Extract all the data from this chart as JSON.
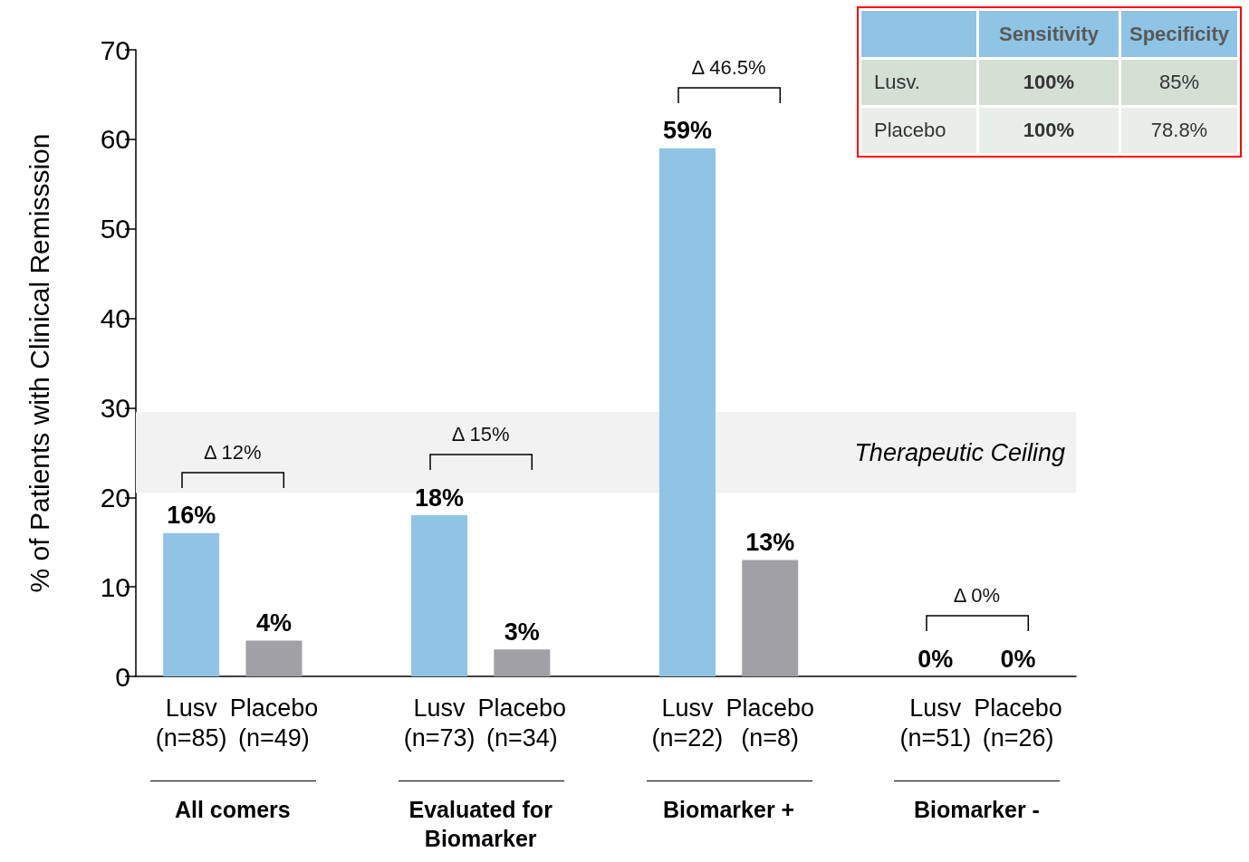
{
  "chart_data": [
    {
      "type": "bar",
      "ylabel": "% of Patients with Clinical Remisssion",
      "categories": [
        "Lusv\n(n=85)",
        "Placebo\n(n=49)",
        "Lusv\n(n=73)",
        "Placebo\n(n=34)",
        "Lusv\n(n=22)",
        "Placebo\n(n=8)",
        "Lusv\n(n=51)",
        "Placebo\n(n=26)"
      ],
      "values": [
        16,
        4,
        18,
        3,
        59,
        13,
        0,
        0
      ],
      "colors": [
        "#8fc4e4",
        "#a1a0a5",
        "#8fc4e4",
        "#a1a0a5",
        "#8fc4e4",
        "#a1a0a5",
        "#8fc4e4",
        "#a1a0a5"
      ],
      "value_labels": [
        "16%",
        "4%",
        "18%",
        "3%",
        "59%",
        "13%",
        "0%",
        "0%"
      ],
      "ylim": [
        0,
        70
      ],
      "yticks": [
        0,
        10,
        20,
        30,
        40,
        50,
        60,
        70
      ],
      "bands": [
        {
          "axis": "y",
          "from": 20.5,
          "to": 29.5,
          "label": "Therapeutic Ceiling",
          "color": "#f2f2f2"
        }
      ],
      "annotations": [
        "Δ 12%",
        "Δ 15%",
        "Δ 46.5%",
        "Δ 0%",
        "All comers",
        "Evaluated for Biomarker",
        "Biomarker +",
        "Biomarker -"
      ]
    },
    {
      "type": "other",
      "categories": [
        "Sensitivity",
        "Specificity"
      ],
      "y_categories": [
        "Lusv.",
        "Placebo"
      ],
      "cell_labels": [
        [
          "100%",
          "85%"
        ],
        [
          "100%",
          "78.8%"
        ]
      ]
    }
  ]
}
